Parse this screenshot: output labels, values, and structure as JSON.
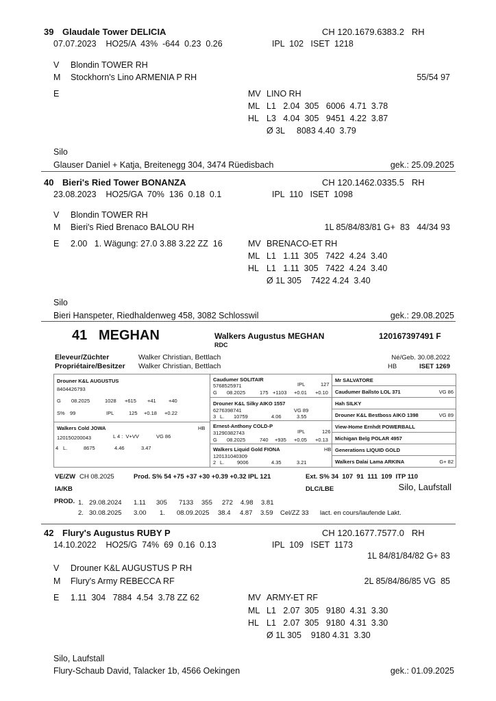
{
  "lots": [
    {
      "number": "39",
      "name": "Glaudale Tower DELICIA",
      "id": "CH 120.1679.6383.2   RH",
      "info_left": "07.07.2023    HO25/A  43%  -644  0.23  0.26",
      "info_right": "IPL  102   ISET  1218",
      "extra": "",
      "sire_label": "V",
      "sire": "Blondin TOWER RH",
      "dam_label": "M",
      "dam": "Stockhorn's Lino ARMENIA P RH",
      "dam_score": "55/54 97",
      "e_label": "E",
      "e_text": "",
      "mv_label": "MV",
      "mv": "LINO RH",
      "ml_label": "ML",
      "ml": "L1   2.04  305   6006  4.71  3.78",
      "hl_label": "HL",
      "hl": "L3   4.04  305   9451  4.22  3.87",
      "avg": "Ø 3L     8083 4.40  3.79",
      "housing": "Silo",
      "owner": "Glauser Daniel + Katja, Breitenegg 304, 3474 Rüedisbach",
      "purchased": "gek.: 25.09.2025"
    },
    {
      "number": "40",
      "name": "Bieri's Ried Tower BONANZA",
      "id": "CH 120.1462.0335.5   RH",
      "info_left": "23.08.2023    HO25/GA  70%  136  0.18  0.1",
      "info_right": "IPL  110   ISET  1098",
      "extra": "",
      "sire_label": "V",
      "sire": "Blondin TOWER RH",
      "dam_label": "M",
      "dam": "Bieri's Ried Brenaco BALOU RH",
      "dam_score": "1L 85/84/83/81 G+  83   44/34 93",
      "e_label": "E",
      "e_text": "2.00   1. Wägung: 27.0 3.88 3.22 ZZ  16",
      "mv_label": "MV",
      "mv": "BRENACO-ET RH",
      "ml_label": "ML",
      "ml": "L1   1.11  305   7422  4.24  3.40",
      "hl_label": "HL",
      "hl": "L1   1.11  305   7422  4.24  3.40",
      "avg": "Ø 1L 305    7422 4.24  3.40",
      "housing": "Silo",
      "owner": "Bieri Hanspeter, Riedhaldenweg 458, 3082 Schlosswil",
      "purchased": "gek.: 29.08.2025"
    },
    {
      "number": "42",
      "name": "Flury's Augustus RUBY P",
      "id": "CH 120.1677.7577.0   RH",
      "info_left": "14.10.2022    HO25/G  74%  69  0.16  0.13",
      "info_right": "IPL  109   ISET  1173",
      "extra": "1L 84/81/84/82 G+ 83",
      "sire_label": "V",
      "sire": "Drouner K&L AUGUSTUS P RH",
      "dam_label": "M",
      "dam": "Flury's Army REBECCA RF",
      "dam_score": "2L 85/84/86/85 VG  85",
      "e_label": "E",
      "e_text": "1.11  304   7884  4.54  3.78 ZZ 62",
      "mv_label": "MV",
      "mv": "ARMY-ET RF",
      "ml_label": "ML",
      "ml": "L1   2.07  305   9180  4.31  3.30",
      "hl_label": "HL",
      "hl": "L1   2.07  305   9180  4.31  3.30",
      "avg": "Ø 1L 305    9180 4.31  3.30",
      "housing": "Silo, Laufstall",
      "owner": "Flury-Schaub David, Talacker 1b, 4566 Oekingen",
      "purchased": "gek.: 01.09.2025"
    }
  ],
  "featured": {
    "number": "41",
    "short_name": "MEGHAN",
    "full_name": "Walkers Augustus MEGHAN",
    "id": "120167397491 F",
    "subtitle": "RDC",
    "breeder_label": "Eleveur/Züchter",
    "breeder": "Walker Christian, Bettlach",
    "owner_label": "Propriétaire/Besitzer",
    "owner": "Walker Christian, Bettlach",
    "birth": "Né/Geb. 30.08.2022",
    "hb": "HB",
    "iset": "ISET 1269",
    "pedigree": {
      "sire": {
        "name": "Drouner K&L AUGUSTUS",
        "id": "8404426793",
        "g_row": [
          "G",
          "08.2025",
          "1028",
          "+615",
          "+41",
          "+40"
        ],
        "s_row": [
          "S%",
          "99",
          "IPL",
          "125",
          "+0.18",
          "+0.22"
        ]
      },
      "dam": {
        "name": "Walkers Cold JOWA",
        "hb": "HB",
        "id": "120150200043",
        "lin": "L 4 :  V+VV",
        "score": "VG 86",
        "lact_row": [
          "4",
          "L.",
          "8675",
          "4.46",
          "3.47"
        ]
      },
      "ss": {
        "name": "Caudumer SOLITAIR",
        "id": "5768525971",
        "ipl_label": "IPL",
        "ipl": "127",
        "g_row": [
          "G",
          "08.2025",
          "175",
          "+1103",
          "+0.01",
          "+0.10"
        ]
      },
      "sd": {
        "name": "Drouner K&L Silky AIKO 1557",
        "id": "6276398741",
        "score": "VG 89",
        "lact_row": [
          "3",
          "L.",
          "10759",
          "4.06",
          "3.55"
        ]
      },
      "ds": {
        "name": "Ernest-Anthony COLD-P",
        "id": "31290382743",
        "ipl_label": "IPL",
        "ipl": "126",
        "g_row": [
          "G",
          "08.2025",
          "740",
          "+935",
          "+0.05",
          "+0.13"
        ]
      },
      "dd": {
        "name": "Walkers Liquid Gold FIONA",
        "hb": "HB",
        "id": "120131040309",
        "lact_row": [
          "2",
          "L.",
          "9006",
          "4.35",
          "3.21"
        ]
      },
      "gen3": [
        {
          "name": "Mr SALVATORE",
          "score": ""
        },
        {
          "name": "Caudumer Ballsto LOL 371",
          "score": "VG 86"
        },
        {
          "name": "Hah SILKY",
          "score": ""
        },
        {
          "name": "Drouner K&L Bestboss AIKO 1398",
          "score": "VG 89"
        },
        {
          "name": "View-Home Ernhdt POWERBALL",
          "score": ""
        },
        {
          "name": "Michigan Belg POLAR 4957",
          "score": ""
        },
        {
          "name": "Generations LIQUID GOLD",
          "score": ""
        },
        {
          "name": "Walkers Dalai Lama ARKINA",
          "score": "G+ 82"
        }
      ]
    },
    "vezw_label": "VE/ZW",
    "vezw": "CH 08.2025",
    "prod_index": "Prod. S% 54 +75 +37 +30 +0.39 +0.32 IPL 121",
    "ext_index": "Ext. S% 34  107  91  111  109  ITP 110",
    "iakb_label": "IA/KB",
    "dlc_label": "DLC/LBE",
    "housing": "Silo, Laufstall",
    "prod_label": "PROD.",
    "prod_rows": [
      [
        "1.",
        "29.08.2024",
        "1.11",
        "305",
        "7133",
        "355",
        "272",
        "4.98",
        "3.81",
        "",
        ""
      ],
      [
        "2.",
        "30.08.2025",
        "3.00",
        "1.",
        "08.09.2025",
        "38.4",
        "4.87",
        "3.59",
        "Cel/ZZ 33",
        "lact. en cours/laufende Lakt."
      ]
    ]
  }
}
